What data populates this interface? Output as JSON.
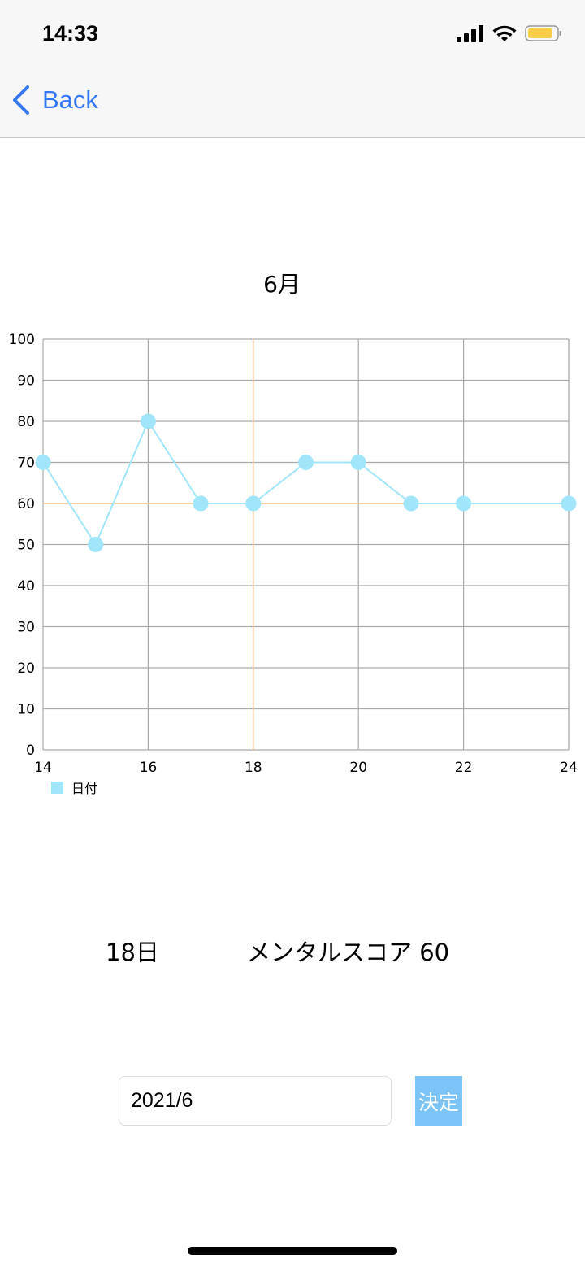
{
  "status_bar": {
    "time": "14:33"
  },
  "nav": {
    "back_label": "Back"
  },
  "chart_data": {
    "type": "line",
    "title": "6月",
    "x": [
      14,
      15,
      16,
      17,
      18,
      19,
      20,
      21,
      22,
      24
    ],
    "series": [
      {
        "name": "日付",
        "values": [
          70,
          50,
          80,
          60,
          60,
          70,
          70,
          60,
          60,
          60
        ],
        "color": "#a1e5fa"
      }
    ],
    "xlim": [
      14,
      24
    ],
    "ylim": [
      0,
      100
    ],
    "xticks": [
      14,
      16,
      18,
      20,
      22,
      24
    ],
    "yticks": [
      0,
      10,
      20,
      30,
      40,
      50,
      60,
      70,
      80,
      90,
      100
    ],
    "grid": true,
    "legend": "bottom-left",
    "highlight": {
      "x": 18,
      "y": 60,
      "color": "#f5c48a"
    }
  },
  "selection": {
    "day": "18日",
    "score": "メンタルスコア 60"
  },
  "form": {
    "date_value": "2021/6",
    "submit_label": "決定"
  }
}
